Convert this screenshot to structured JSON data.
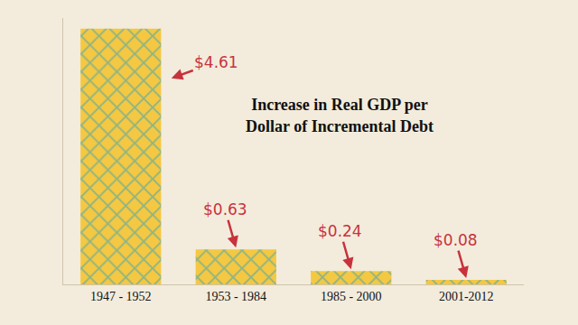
{
  "chart_data": {
    "type": "bar",
    "title": "Increase in Real GDP per Dollar of Incremental Debt",
    "categories": [
      "1947 - 1952",
      "1953 - 1984",
      "1985 - 2000",
      "2001-2012"
    ],
    "values": [
      4.61,
      0.63,
      0.24,
      0.08
    ],
    "value_labels": [
      "$4.61",
      "$0.63",
      "$0.24",
      "$0.08"
    ],
    "color": "#f4c842",
    "ylim": [
      0,
      4.8
    ],
    "data_labels": true,
    "tick_labels": "x",
    "grid": false
  }
}
